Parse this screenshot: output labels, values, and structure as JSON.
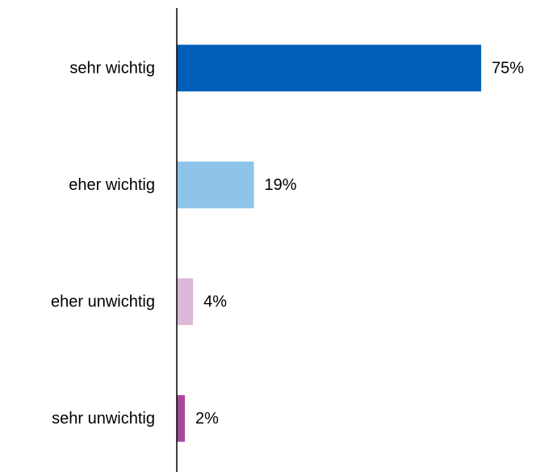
{
  "chart_data": {
    "type": "bar",
    "orientation": "horizontal",
    "categories": [
      "sehr wichtig",
      "eher wichtig",
      "eher unwichtig",
      "sehr unwichtig"
    ],
    "values": [
      75,
      19,
      4,
      2
    ],
    "value_labels": [
      "75%",
      "19%",
      "4%",
      "2%"
    ],
    "colors": [
      "#005eb8",
      "#8ec3ea",
      "#ddb8d8",
      "#a8479a"
    ],
    "xlim": [
      0,
      80
    ]
  }
}
